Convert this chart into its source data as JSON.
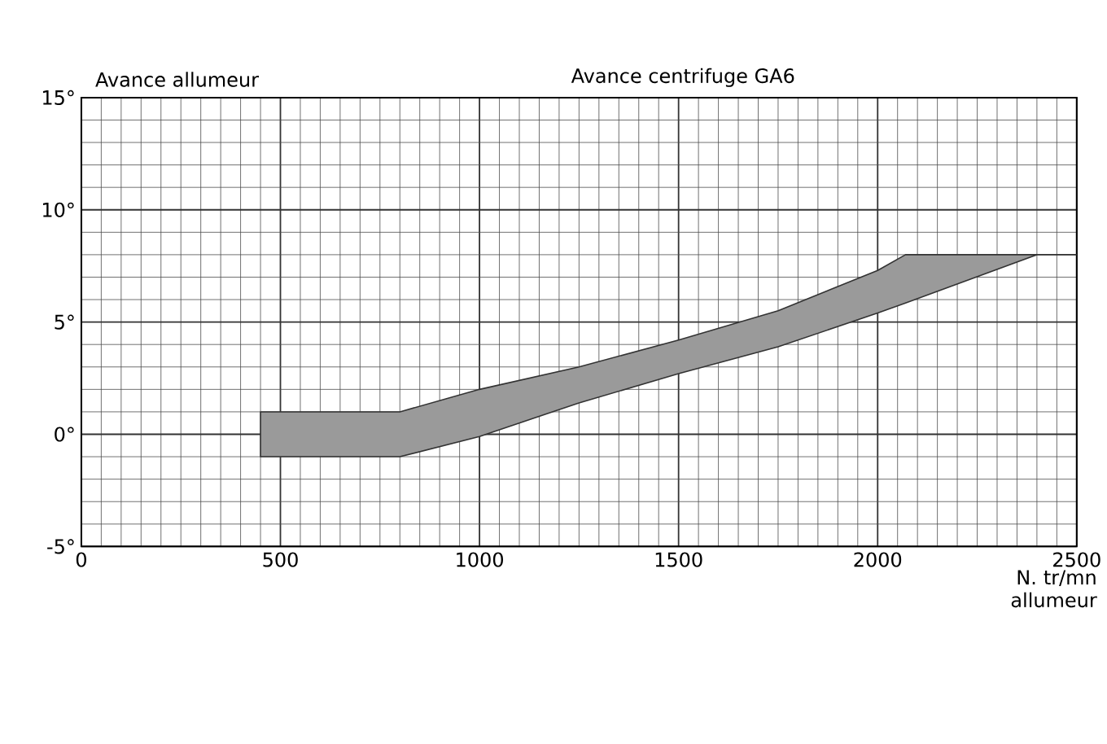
{
  "chart_data": {
    "type": "area",
    "title": "Avance centrifuge GA6",
    "ylabel": "Avance allumeur",
    "xlabel": "N. tr/mn allumeur",
    "x": [
      450,
      800,
      1000,
      1250,
      1500,
      1750,
      2000,
      2070,
      2400,
      2500
    ],
    "series": [
      {
        "color": "#9a9a9a",
        "values": [
          null,
          null,
          null,
          null,
          null,
          null,
          null,
          null,
          null,
          null
        ],
        "lower": [
          -1,
          -1,
          -0.1,
          1.4,
          2.7,
          3.9,
          5.4,
          5.85,
          8,
          8
        ],
        "upper": [
          1,
          1,
          2.0,
          3.0,
          4.2,
          5.5,
          7.3,
          8,
          8,
          8
        ]
      }
    ],
    "xlim": [
      0,
      2500
    ],
    "ylim": [
      -5,
      15
    ],
    "xticks": [
      0,
      500,
      1000,
      1500,
      2000,
      2500
    ],
    "yticks": [
      {
        "value": -5,
        "label": "-5°"
      },
      {
        "value": 0,
        "label": "0°"
      },
      {
        "value": 5,
        "label": "5°"
      },
      {
        "value": 10,
        "label": "10°"
      },
      {
        "value": 15,
        "label": "15°"
      }
    ],
    "grid": true
  }
}
